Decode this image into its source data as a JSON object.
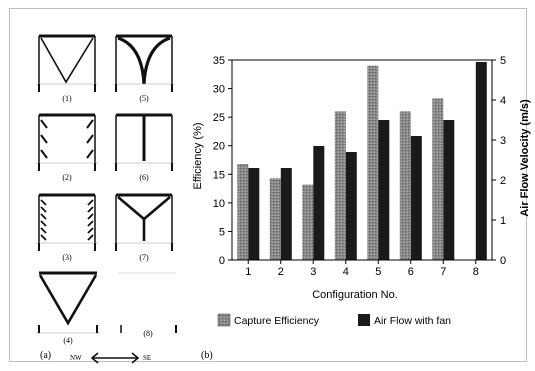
{
  "panel_labels": {
    "a": "(a)",
    "b": "(b)"
  },
  "compass": {
    "left": "NW",
    "right": "SE"
  },
  "configurations": [
    {
      "id": 1,
      "label": "(1)"
    },
    {
      "id": 2,
      "label": "(2)"
    },
    {
      "id": 3,
      "label": "(3)"
    },
    {
      "id": 4,
      "label": "(4)"
    },
    {
      "id": 5,
      "label": "(5)"
    },
    {
      "id": 6,
      "label": "(6)"
    },
    {
      "id": 7,
      "label": "(7)"
    },
    {
      "id": 8,
      "label": "(8)"
    }
  ],
  "chart_data": {
    "type": "bar",
    "xlabel": "Configuration No.",
    "ylabel": "Efficiency (%)",
    "y2label": "Air Flow Velocity (m/s)",
    "categories": [
      "1",
      "2",
      "3",
      "4",
      "5",
      "6",
      "7",
      "8"
    ],
    "ylim": [
      0,
      35
    ],
    "y2lim": [
      0,
      5
    ],
    "yticks": [
      0,
      5,
      10,
      15,
      20,
      25,
      30,
      35
    ],
    "y2ticks": [
      0,
      1,
      2,
      3,
      4,
      5
    ],
    "series": [
      {
        "name": "Capture Efficiency",
        "axis": "left",
        "color": "#7a7a7a",
        "values": [
          16.8,
          14.3,
          13.2,
          26.0,
          34.0,
          26.0,
          28.3,
          0
        ]
      },
      {
        "name": "Air Flow with fan",
        "axis": "right",
        "color": "#1a1a1a",
        "values": [
          2.3,
          2.3,
          2.85,
          2.7,
          3.5,
          3.1,
          3.5,
          4.95
        ]
      }
    ],
    "legend_position": "bottom"
  }
}
